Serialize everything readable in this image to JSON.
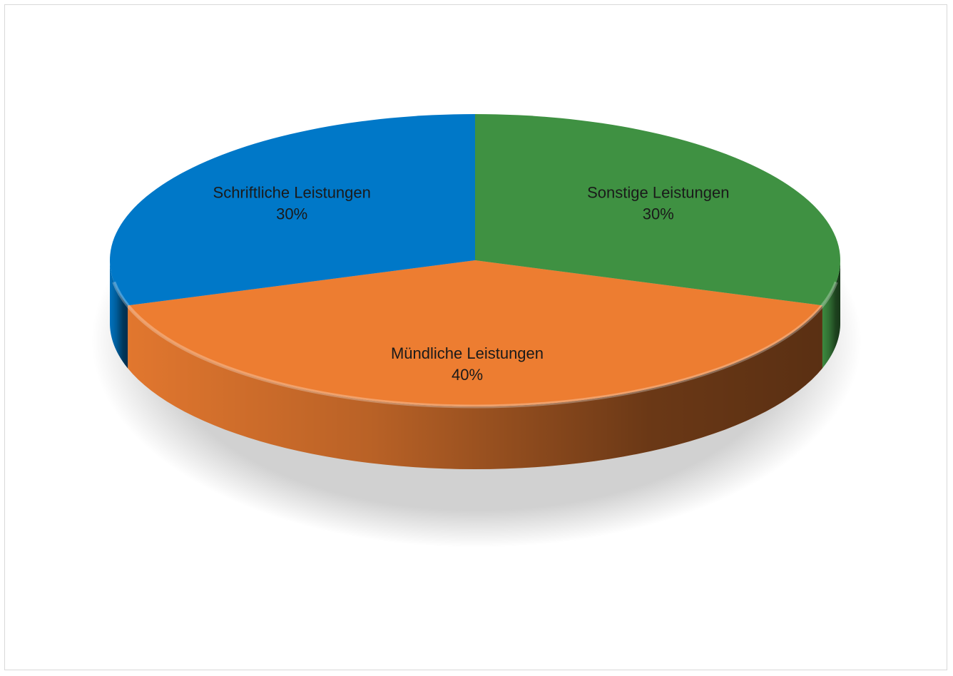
{
  "chart_data": {
    "type": "pie",
    "style": "3d",
    "title": "",
    "legend": "none",
    "slices": [
      {
        "label": "Mündliche Leistungen",
        "value": 40,
        "value_label": "40%",
        "color": "#ED7D31"
      },
      {
        "label": "Schriftliche Leistungen",
        "value": 30,
        "value_label": "30%",
        "color": "#0078C8"
      },
      {
        "label": "Sonstige Leistungen",
        "value": 30,
        "value_label": "30%",
        "color": "#3F9142"
      }
    ]
  }
}
